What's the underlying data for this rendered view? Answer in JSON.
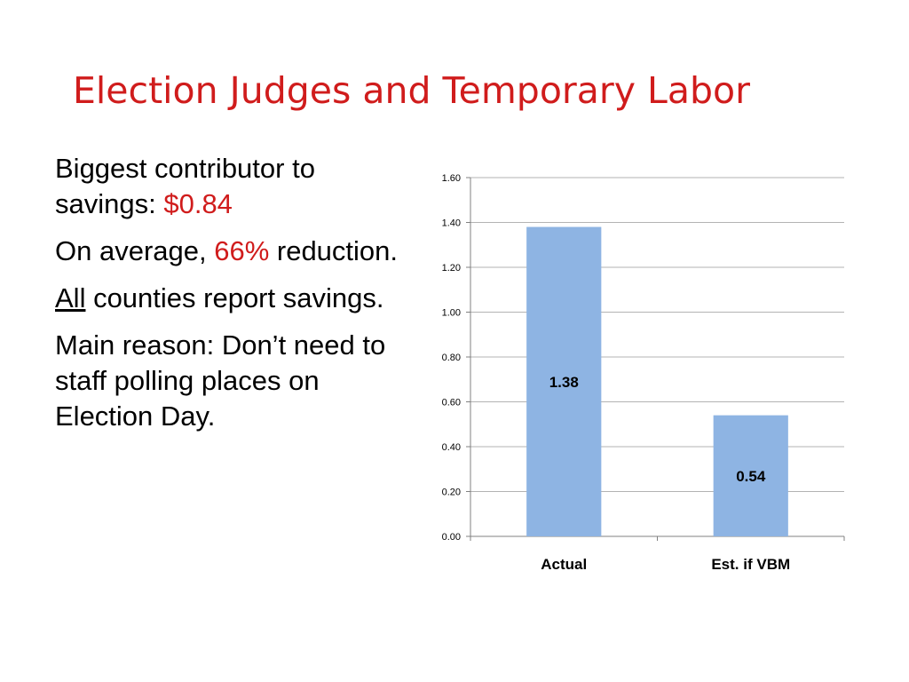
{
  "slide": {
    "title": "Election Judges and Temporary Labor",
    "bullets": [
      {
        "parts": [
          {
            "text": "Biggest contributor to savings: "
          },
          {
            "text": "$0.84",
            "style": "highlight"
          }
        ]
      },
      {
        "parts": [
          {
            "text": "On average, "
          },
          {
            "text": "66%",
            "style": "highlight"
          },
          {
            "text": " reduction."
          }
        ]
      },
      {
        "parts": [
          {
            "text": "All",
            "style": "underline"
          },
          {
            "text": " counties report savings."
          }
        ]
      },
      {
        "parts": [
          {
            "text": "Main reason: Don’t need to staff polling places on Election Day."
          }
        ]
      }
    ]
  },
  "colors": {
    "title": "#d01c1c",
    "highlight": "#d01c1c",
    "bar": "#8eb4e3",
    "grid": "#b3b3b3",
    "axis": "#808080"
  },
  "chart_data": {
    "type": "bar",
    "categories": [
      "Actual",
      "Est. if VBM"
    ],
    "values": [
      1.38,
      0.54
    ],
    "data_labels": [
      "1.38",
      "0.54"
    ],
    "ylim": [
      0,
      1.6
    ],
    "yticks": [
      0,
      0.2,
      0.4,
      0.6,
      0.8,
      1.0,
      1.2,
      1.4,
      1.6
    ],
    "ytick_labels": [
      "0.00",
      "0.20",
      "0.40",
      "0.60",
      "0.80",
      "1.00",
      "1.20",
      "1.40",
      "1.60"
    ],
    "grid": true,
    "title": "",
    "xlabel": "",
    "ylabel": ""
  }
}
